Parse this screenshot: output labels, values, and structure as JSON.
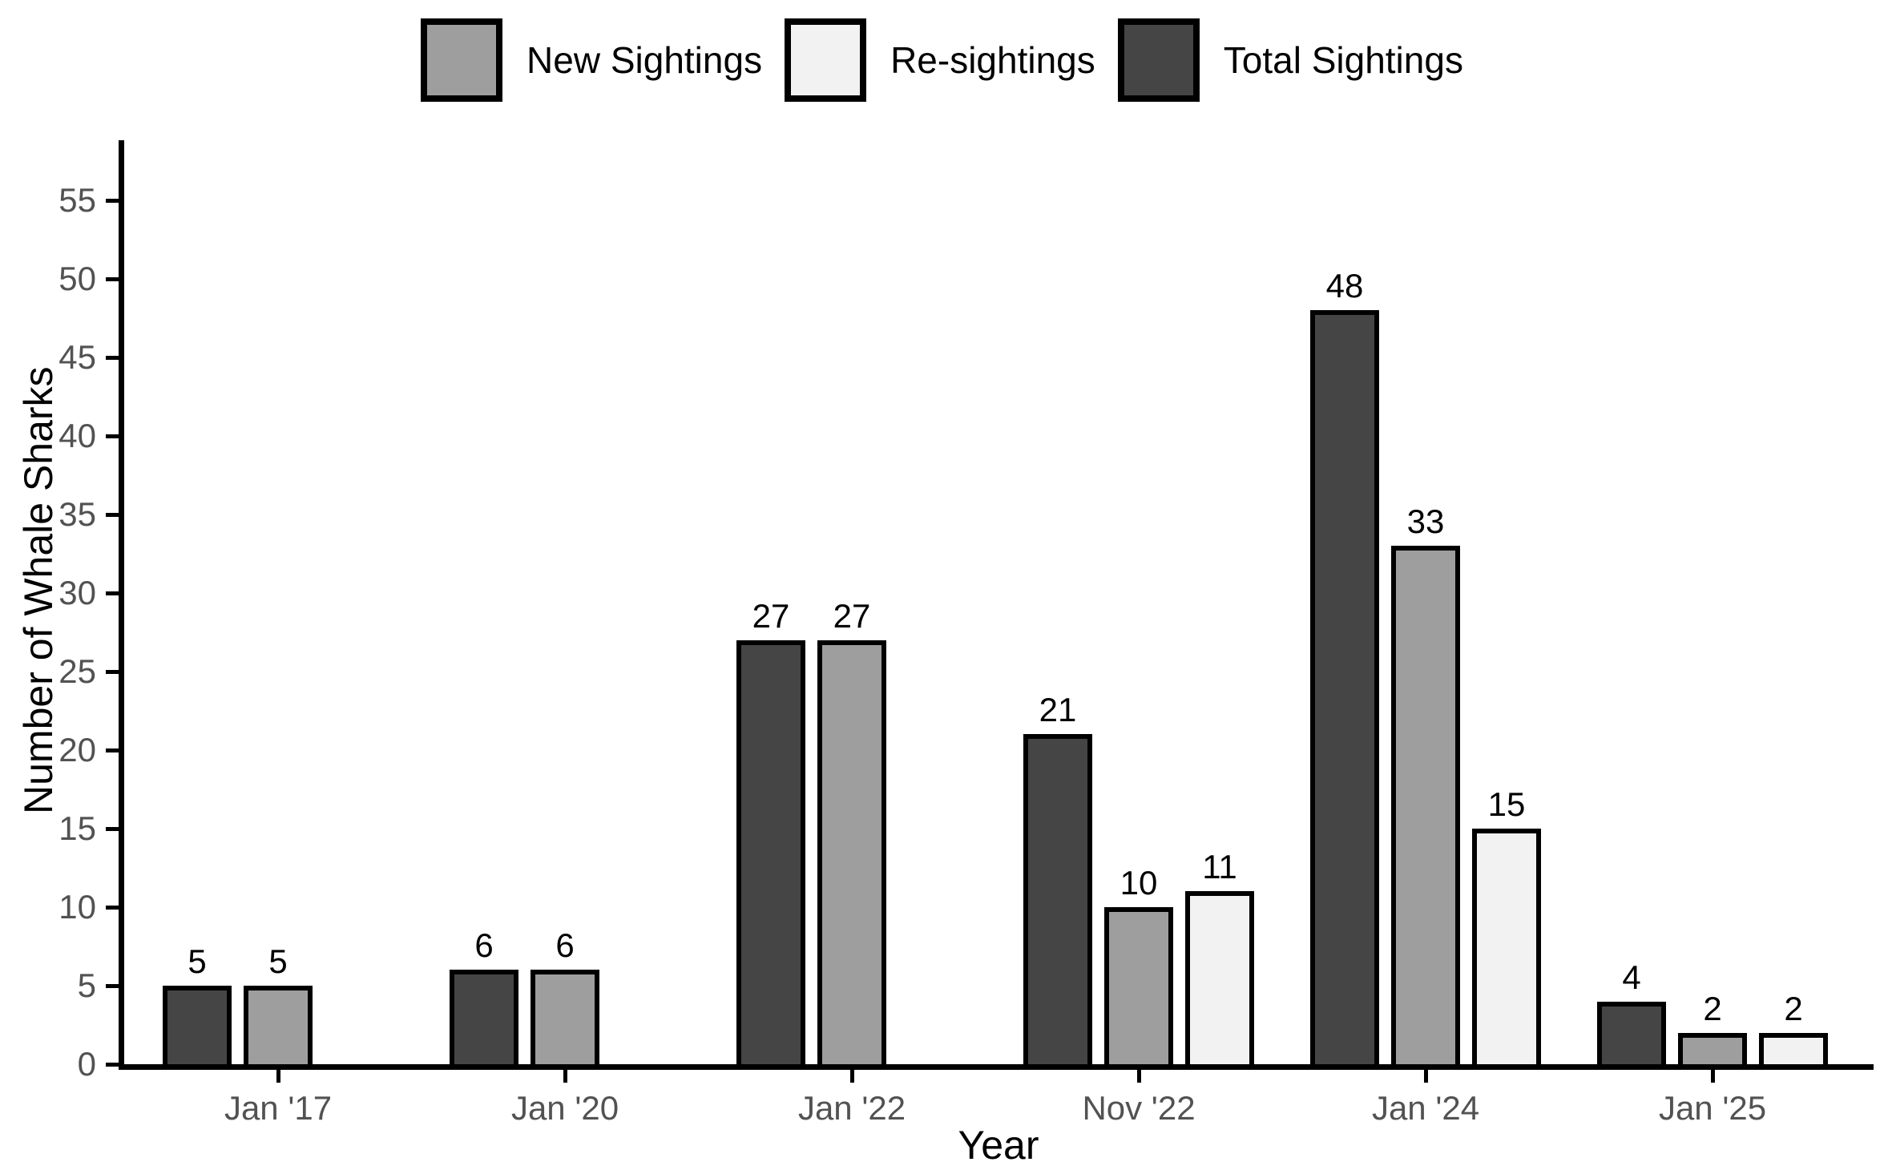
{
  "chart_data": {
    "type": "bar",
    "title": "",
    "xlabel": "Year",
    "ylabel": "Number of Whale Sharks",
    "categories": [
      "Jan '17",
      "Jan '20",
      "Jan '22",
      "Nov '22",
      "Jan '24",
      "Jan '25"
    ],
    "series": [
      {
        "name": "Total Sightings",
        "color": "#454545",
        "values": [
          5,
          6,
          27,
          21,
          48,
          4
        ]
      },
      {
        "name": "New Sightings",
        "color": "#9e9e9e",
        "values": [
          5,
          6,
          27,
          10,
          33,
          2
        ]
      },
      {
        "name": "Re-sightings",
        "color": "#f2f2f2",
        "values": [
          null,
          null,
          null,
          11,
          15,
          2
        ]
      }
    ],
    "legend_order": [
      "New Sightings",
      "Re-sightings",
      "Total Sightings"
    ],
    "legend_position": "top",
    "bar_value_labels": [
      [
        "5",
        "6",
        "27",
        "21",
        "48",
        "4"
      ],
      [
        "5",
        "6",
        "27",
        "10",
        "33",
        "2"
      ],
      [
        "",
        "",
        "",
        "11",
        "15",
        "2"
      ]
    ],
    "y_ticks": [
      "0",
      "5",
      "10",
      "15",
      "20",
      "25",
      "30",
      "35",
      "40",
      "45",
      "50",
      "55"
    ],
    "ylim": [
      0,
      57
    ],
    "grid": "off",
    "colors": {
      "axis": "#000000",
      "bar_border": "#000000",
      "tick_label": "#525252",
      "axis_title": "#000000",
      "background": "#ffffff"
    }
  }
}
